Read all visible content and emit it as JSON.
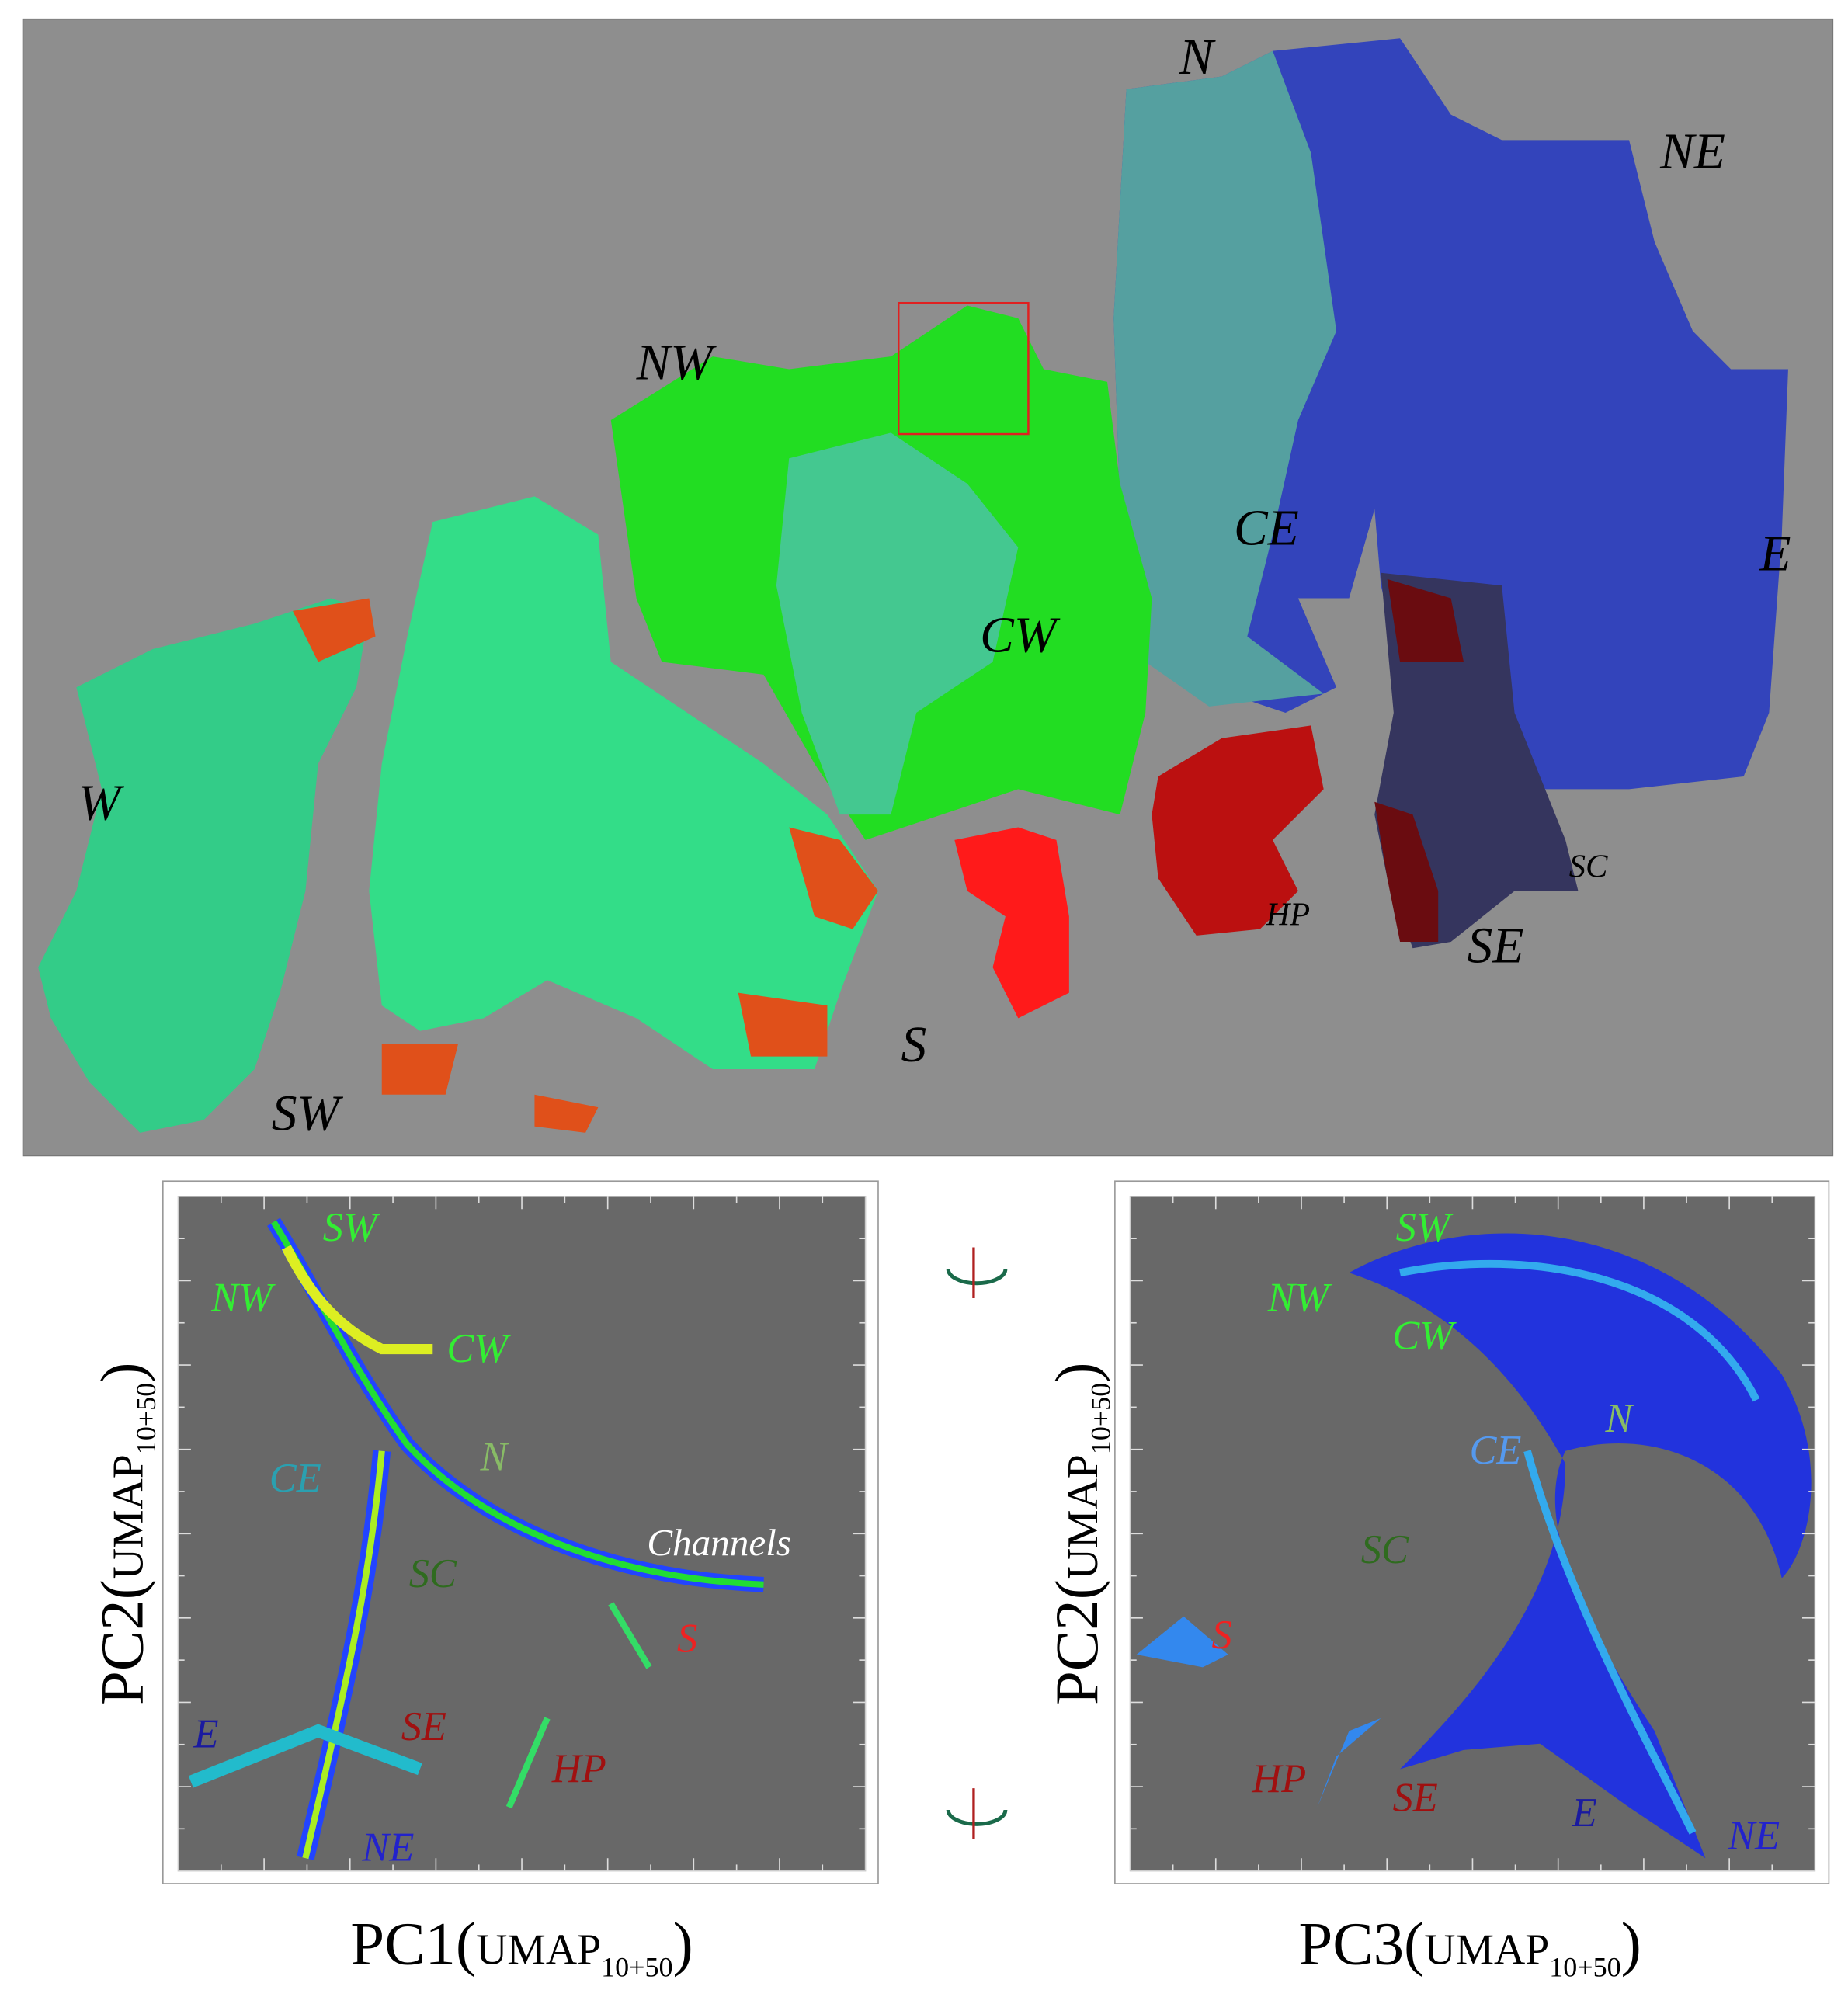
{
  "map": {
    "labels": [
      {
        "text": "N",
        "color": "#000000"
      },
      {
        "text": "NE",
        "color": "#000000"
      },
      {
        "text": "NW",
        "color": "#000000"
      },
      {
        "text": "CE",
        "color": "#000000"
      },
      {
        "text": "E",
        "color": "#000000"
      },
      {
        "text": "CW",
        "color": "#000000"
      },
      {
        "text": "W",
        "color": "#000000"
      },
      {
        "text": "HP",
        "color": "#000000"
      },
      {
        "text": "SC",
        "color": "#000000"
      },
      {
        "text": "SE",
        "color": "#000000"
      },
      {
        "text": "S",
        "color": "#000000"
      },
      {
        "text": "SW",
        "color": "#000000"
      }
    ]
  },
  "plots": [
    {
      "labels": [
        {
          "text": "SW",
          "color": "#33ee33"
        },
        {
          "text": "NW",
          "color": "#33ee33"
        },
        {
          "text": "CW",
          "color": "#33ee33"
        },
        {
          "text": "N",
          "color": "#88bb66"
        },
        {
          "text": "CE",
          "color": "#2aa0b0"
        },
        {
          "text": "Channels",
          "color": "#ffffff"
        },
        {
          "text": "SC",
          "color": "#2f6b1f"
        },
        {
          "text": "S",
          "color": "#ee2222"
        },
        {
          "text": "E",
          "color": "#1a1aa0"
        },
        {
          "text": "SE",
          "color": "#a01010"
        },
        {
          "text": "HP",
          "color": "#a01010"
        },
        {
          "text": "NE",
          "color": "#2222cc"
        }
      ],
      "x_axis": {
        "prefix": "PC1(",
        "main": "UMAP",
        "sub": "10+50",
        "suffix": ")"
      },
      "y_axis": {
        "prefix": "PC2(",
        "main": "UMAP",
        "sub": "10+50",
        "suffix": ")"
      }
    },
    {
      "labels": [
        {
          "text": "SW",
          "color": "#33ee33"
        },
        {
          "text": "NW",
          "color": "#33ee33"
        },
        {
          "text": "CW",
          "color": "#33ee33"
        },
        {
          "text": "CE",
          "color": "#5599ee"
        },
        {
          "text": "N",
          "color": "#88bb66"
        },
        {
          "text": "SC",
          "color": "#2f6b1f"
        },
        {
          "text": "S",
          "color": "#ee2222"
        },
        {
          "text": "HP",
          "color": "#a01010"
        },
        {
          "text": "SE",
          "color": "#a01010"
        },
        {
          "text": "E",
          "color": "#1a1aa0"
        },
        {
          "text": "NE",
          "color": "#2222cc"
        }
      ],
      "x_axis": {
        "prefix": "PC3(",
        "main": "UMAP",
        "sub": "10+50",
        "suffix": ")"
      },
      "y_axis": {
        "prefix": "PC2(",
        "main": "UMAP",
        "sub": "10+50",
        "suffix": ")"
      }
    }
  ]
}
